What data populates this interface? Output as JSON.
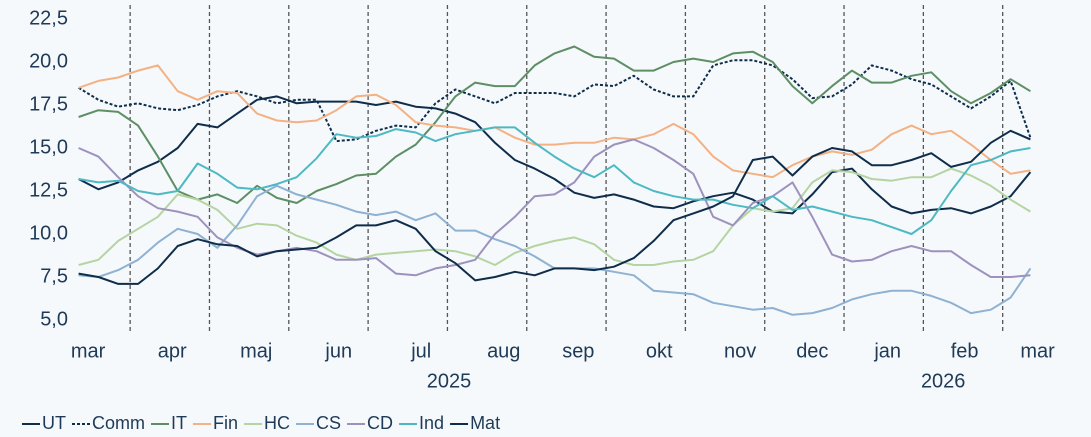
{
  "chart_data": {
    "type": "line",
    "x": [
      0.35,
      0.6,
      0.85,
      1.1,
      1.35,
      1.6,
      1.85,
      2.1,
      2.35,
      2.6,
      2.85,
      3.1,
      3.35,
      3.6,
      3.85,
      4.1,
      4.35,
      4.6,
      4.85,
      5.1,
      5.35,
      5.6,
      5.85,
      6.1,
      6.35,
      6.6,
      6.85,
      7.1,
      7.35,
      7.6,
      7.85,
      8.1,
      8.35,
      8.6,
      8.85,
      9.1,
      9.35,
      9.6,
      9.85,
      10.1,
      10.35,
      10.6,
      10.85,
      11.1,
      11.35,
      11.6,
      11.85,
      12.1,
      12.35
    ],
    "series": [
      {
        "name": "UT",
        "color": "#0f2d4a",
        "style": "solid",
        "values": [
          13.2,
          12.6,
          13.0,
          13.7,
          14.2,
          15.0,
          16.4,
          16.2,
          17.0,
          17.8,
          18.0,
          17.6,
          17.7,
          17.7,
          17.7,
          17.5,
          17.7,
          17.4,
          17.3,
          17.0,
          16.5,
          15.3,
          14.3,
          13.8,
          13.2,
          12.4,
          12.1,
          12.3,
          12.0,
          11.6,
          11.5,
          11.9,
          12.2,
          12.4,
          12.0,
          11.3,
          11.2,
          12.3,
          13.6,
          13.8,
          12.6,
          11.6,
          11.2,
          11.4,
          11.5,
          11.2,
          11.6,
          12.2,
          13.6
        ]
      },
      {
        "name": "Comm",
        "color": "#0f2d4a",
        "style": "dotted",
        "values": [
          18.5,
          17.8,
          17.4,
          17.6,
          17.3,
          17.2,
          17.5,
          18.0,
          18.3,
          18.0,
          17.6,
          17.8,
          17.8,
          15.4,
          15.5,
          16.0,
          16.3,
          16.2,
          17.6,
          18.4,
          18.0,
          17.6,
          18.2,
          18.2,
          18.2,
          18.0,
          18.7,
          18.6,
          19.2,
          18.4,
          18.0,
          18.0,
          19.8,
          20.1,
          20.1,
          19.8,
          19.0,
          17.9,
          18.0,
          18.7,
          19.8,
          19.5,
          19.0,
          18.7,
          18.0,
          17.3,
          18.0,
          18.9,
          15.6
        ]
      },
      {
        "name": "IT",
        "color": "#5e8f64",
        "style": "solid",
        "values": [
          16.8,
          17.2,
          17.1,
          16.3,
          14.5,
          12.5,
          12.0,
          12.3,
          11.8,
          12.8,
          12.1,
          11.8,
          12.5,
          12.9,
          13.4,
          13.5,
          14.5,
          15.2,
          16.5,
          18.0,
          18.8,
          18.6,
          18.6,
          19.8,
          20.5,
          20.9,
          20.3,
          20.2,
          19.5,
          19.5,
          20.0,
          20.2,
          20.0,
          20.5,
          20.6,
          20.0,
          18.6,
          17.6,
          18.6,
          19.5,
          18.8,
          18.8,
          19.2,
          19.4,
          18.3,
          17.6,
          18.2,
          19.0,
          18.3
        ]
      },
      {
        "name": "Fin",
        "color": "#f4b183",
        "style": "solid",
        "values": [
          18.5,
          18.9,
          19.1,
          19.5,
          19.8,
          18.3,
          17.8,
          18.3,
          18.2,
          17.0,
          16.6,
          16.5,
          16.6,
          17.2,
          18.0,
          18.1,
          17.5,
          16.5,
          16.3,
          16.2,
          16.0,
          16.2,
          15.6,
          15.2,
          15.2,
          15.3,
          15.3,
          15.6,
          15.5,
          15.8,
          16.4,
          15.8,
          14.5,
          13.7,
          13.5,
          13.3,
          14.0,
          14.5,
          14.8,
          14.6,
          14.9,
          15.8,
          16.3,
          15.8,
          16.0,
          15.2,
          14.3,
          13.5,
          13.7
        ]
      },
      {
        "name": "HC",
        "color": "#b6d4a2",
        "style": "solid",
        "values": [
          8.2,
          8.5,
          9.6,
          10.3,
          11.0,
          12.3,
          12.0,
          11.4,
          10.3,
          10.6,
          10.5,
          9.9,
          9.5,
          8.8,
          8.5,
          8.8,
          8.9,
          9.0,
          9.1,
          9.0,
          8.7,
          8.2,
          8.9,
          9.3,
          9.6,
          9.8,
          9.4,
          8.5,
          8.2,
          8.2,
          8.4,
          8.5,
          9.0,
          10.5,
          11.5,
          11.3,
          11.5,
          13.0,
          13.7,
          13.6,
          13.2,
          13.1,
          13.3,
          13.3,
          13.8,
          13.4,
          12.8,
          12.0,
          11.3
        ]
      },
      {
        "name": "CS",
        "color": "#8fb1d2",
        "style": "solid",
        "values": [
          7.6,
          7.5,
          7.9,
          8.5,
          9.5,
          10.3,
          10.0,
          9.2,
          10.5,
          12.2,
          12.8,
          12.3,
          12.0,
          11.7,
          11.3,
          11.1,
          11.3,
          10.8,
          11.2,
          10.2,
          10.2,
          9.7,
          9.3,
          8.7,
          8.0,
          8.0,
          8.0,
          7.8,
          7.6,
          6.7,
          6.6,
          6.5,
          6.0,
          5.8,
          5.6,
          5.7,
          5.3,
          5.4,
          5.7,
          6.2,
          6.5,
          6.7,
          6.7,
          6.4,
          6.0,
          5.4,
          5.6,
          6.3,
          8.0
        ]
      },
      {
        "name": "CD",
        "color": "#9d92bd",
        "style": "solid",
        "values": [
          15.0,
          14.5,
          13.3,
          12.2,
          11.5,
          11.3,
          11.0,
          9.8,
          9.2,
          8.8,
          9.0,
          9.2,
          9.0,
          8.5,
          8.5,
          8.6,
          7.7,
          7.6,
          8.0,
          8.2,
          8.5,
          10.0,
          11.0,
          12.2,
          12.3,
          13.0,
          14.5,
          15.2,
          15.5,
          15.0,
          14.3,
          13.5,
          11.0,
          10.5,
          11.8,
          12.2,
          13.0,
          11.0,
          8.8,
          8.4,
          8.5,
          9.0,
          9.3,
          9.0,
          9.0,
          8.2,
          7.5,
          7.5,
          7.6
        ]
      },
      {
        "name": "Ind",
        "color": "#4db9c2",
        "style": "solid",
        "values": [
          13.2,
          13.0,
          13.1,
          12.5,
          12.3,
          12.5,
          14.1,
          13.5,
          12.7,
          12.6,
          12.9,
          13.3,
          14.4,
          15.8,
          15.6,
          15.7,
          16.1,
          15.9,
          15.4,
          15.8,
          16.0,
          16.2,
          16.2,
          15.3,
          14.5,
          13.8,
          13.3,
          14.0,
          13.0,
          12.5,
          12.2,
          12.0,
          12.0,
          11.7,
          11.5,
          12.2,
          11.4,
          11.6,
          11.3,
          11.0,
          10.8,
          10.4,
          10.0,
          10.8,
          12.5,
          14.0,
          14.3,
          14.8,
          15.0
        ]
      },
      {
        "name": "Mat",
        "color": "#0f2d4a",
        "style": "solid",
        "values": [
          7.7,
          7.5,
          7.1,
          7.1,
          8.0,
          9.3,
          9.7,
          9.4,
          9.3,
          8.7,
          9.0,
          9.1,
          9.2,
          9.8,
          10.5,
          10.5,
          10.8,
          10.3,
          9.0,
          8.3,
          7.3,
          7.5,
          7.8,
          7.6,
          8.0,
          8.0,
          7.9,
          8.1,
          8.6,
          9.6,
          10.8,
          11.2,
          11.6,
          12.2,
          14.3,
          14.5,
          13.4,
          14.5,
          15.0,
          14.8,
          14.0,
          14.0,
          14.3,
          14.7,
          13.9,
          14.2,
          15.3,
          16.0,
          15.5
        ]
      }
    ],
    "xlim": [
      0.33,
      12.42
    ],
    "xticks": [
      {
        "value": 0.47,
        "label": "mar"
      },
      {
        "value": 1.53,
        "label": "apr"
      },
      {
        "value": 2.59,
        "label": "maj"
      },
      {
        "value": 3.63,
        "label": "jun"
      },
      {
        "value": 4.67,
        "label": "jul"
      },
      {
        "value": 5.71,
        "label": "aug"
      },
      {
        "value": 6.65,
        "label": "sep"
      },
      {
        "value": 7.67,
        "label": "okt"
      },
      {
        "value": 8.69,
        "label": "nov"
      },
      {
        "value": 9.6,
        "label": "dec"
      },
      {
        "value": 10.55,
        "label": "jan"
      },
      {
        "value": 11.52,
        "label": "feb"
      },
      {
        "value": 12.44,
        "label": "mar"
      }
    ],
    "year_labels": [
      {
        "value": 5.02,
        "label": "2025"
      },
      {
        "value": 11.25,
        "label": "2026"
      }
    ],
    "xgrid": [
      1,
      2,
      3,
      4,
      5,
      6,
      7,
      8,
      9,
      10,
      11,
      12
    ],
    "ylim": [
      5.0,
      22.5
    ],
    "yticks": [
      {
        "value": 5.0,
        "label": "5,0"
      },
      {
        "value": 7.5,
        "label": "7,5"
      },
      {
        "value": 10.0,
        "label": "10,0"
      },
      {
        "value": 12.5,
        "label": "12,5"
      },
      {
        "value": 15.0,
        "label": "15,0"
      },
      {
        "value": 17.5,
        "label": "17,5"
      },
      {
        "value": 20.0,
        "label": "20,0"
      },
      {
        "value": 22.5,
        "label": "22,5"
      }
    ],
    "legend": "bottom-left"
  }
}
